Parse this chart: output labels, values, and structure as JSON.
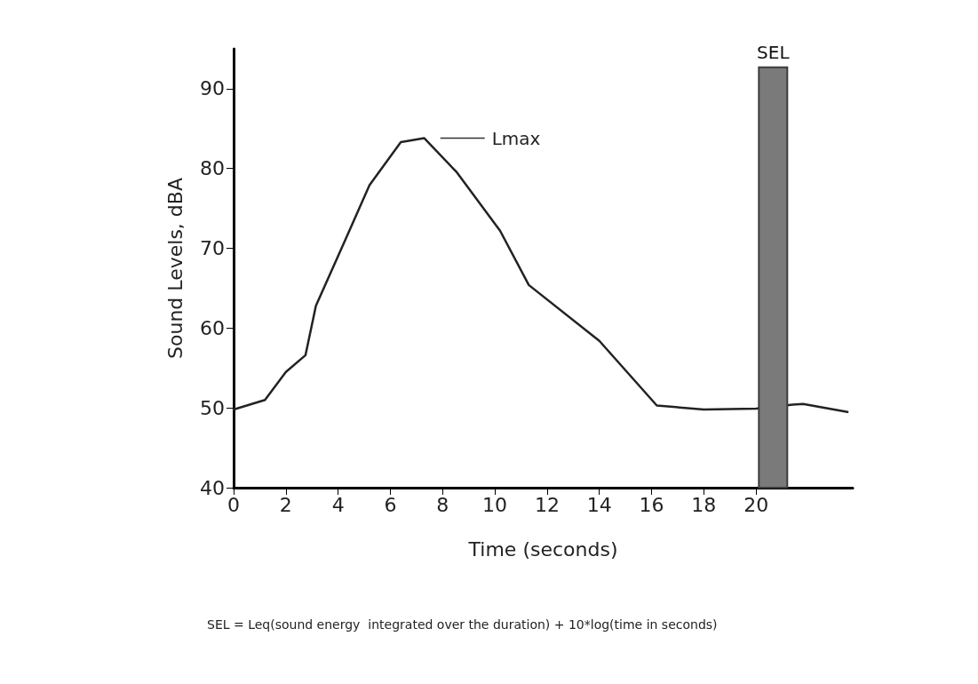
{
  "chart_data": {
    "type": "line",
    "xlabel": "Time (seconds)",
    "ylabel": "Sound Levels, dBA",
    "xlim": [
      0,
      23.7
    ],
    "ylim": [
      40,
      95
    ],
    "xticks": [
      0,
      2,
      4,
      6,
      8,
      10,
      12,
      14,
      16,
      18,
      20
    ],
    "yticks": [
      40,
      50,
      60,
      70,
      80,
      90
    ],
    "grid": false,
    "legend": false,
    "marker": "none",
    "line_style": "solid",
    "series": [
      {
        "color": "#222222",
        "x": [
          0,
          1.2,
          2,
          2.75,
          3.15,
          4.2,
          5.2,
          6.4,
          7.3,
          8.55,
          10.2,
          11.3,
          14,
          16.2,
          18,
          20,
          21.4,
          21.8,
          23.5
        ],
        "values": [
          49.8,
          51,
          54.5,
          56.6,
          62.8,
          70.5,
          77.9,
          83.3,
          83.8,
          79.5,
          72.2,
          65.4,
          58.4,
          50.3,
          49.8,
          49.9,
          50.4,
          50.5,
          49.5
        ]
      },
      {
        "type": "bar",
        "name": "SEL",
        "color": "#7a7a7a",
        "x": [
          20.65
        ],
        "values": [
          92.8
        ]
      }
    ],
    "annotations": [
      "Lmax",
      "SEL = Leq(sound energy  integrated over the duration) + 10*log(time in seconds)"
    ]
  }
}
